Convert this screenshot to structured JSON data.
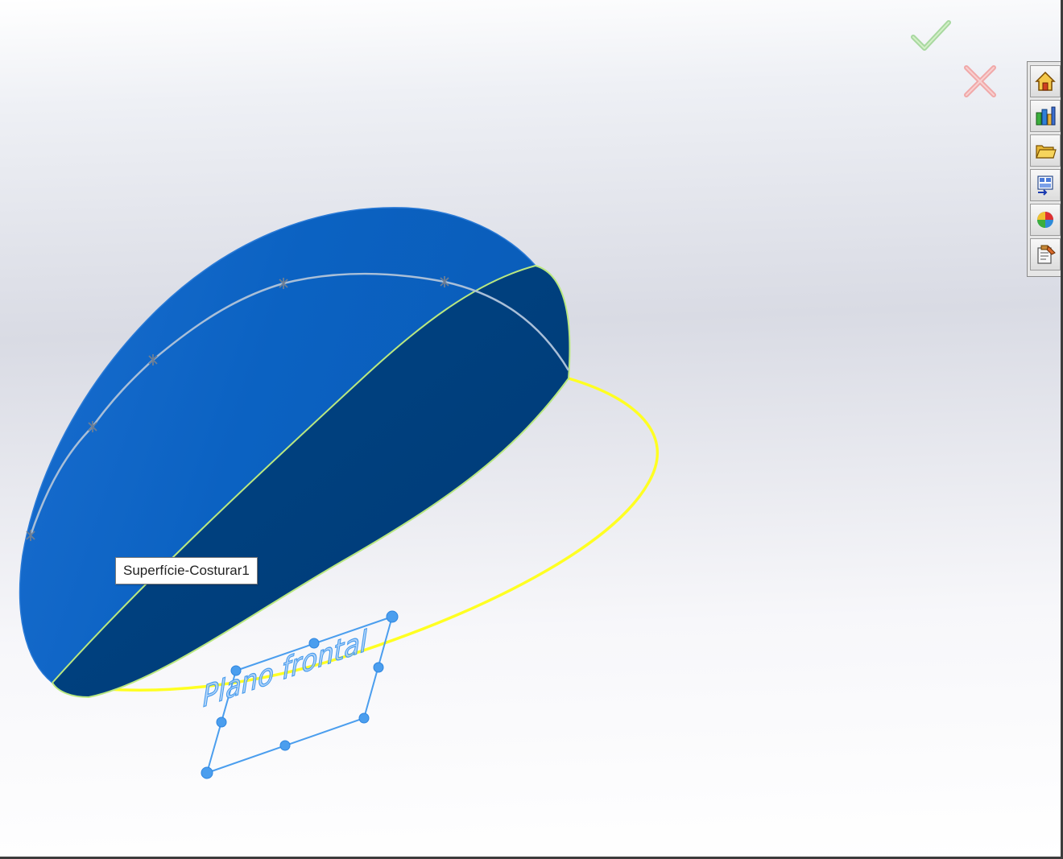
{
  "viewport": {
    "tooltip_text": "Superfície-Costurar1",
    "plane_label": "Plano frontal",
    "colors": {
      "surface_light": "#0a63c4",
      "surface_dark": "#003f7d",
      "edge_yellow": "#ffff22",
      "edge_green": "#b9e880",
      "plane_blue": "#5aa6f0"
    }
  },
  "confirmation_corner": {
    "accept_icon": "checkmark-icon",
    "cancel_icon": "close-x-icon"
  },
  "task_pane": {
    "tabs": [
      {
        "name": "solidworks-resources",
        "icon": "home-icon"
      },
      {
        "name": "design-library",
        "icon": "library-icon"
      },
      {
        "name": "file-explorer",
        "icon": "folder-icon"
      },
      {
        "name": "view-palette",
        "icon": "view-palette-icon"
      },
      {
        "name": "appearances",
        "icon": "appearance-ball-icon"
      },
      {
        "name": "custom-properties",
        "icon": "clipboard-icon"
      }
    ]
  }
}
